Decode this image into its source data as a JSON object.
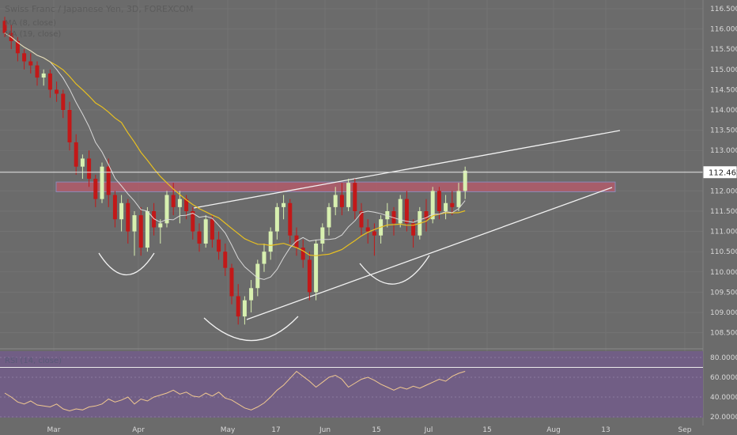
{
  "header": {
    "title": "Swiss Franc / Japanese Yen, 3D, FOREXCOM",
    "ma1": "MA (8, close)",
    "ma2": "MA (19, close)",
    "rsi": "RSI (14, close)"
  },
  "colors": {
    "background": "#6b6b6b",
    "up_candle": "#d8f0b0",
    "down_candle": "#c21818",
    "ma_fast": "#d8d8d8",
    "ma_slow": "#e8c020",
    "trendline": "#f2f2f2",
    "resistance_zone": "#b25a6a",
    "rsi_panel": "#715e85",
    "rsi_line": "#f0c890"
  },
  "chart_data": [
    {
      "type": "candlestick",
      "title": "Swiss Franc / Japanese Yen, 3D, FOREXCOM",
      "y_ticks": [
        "116.500",
        "116.000",
        "115.500",
        "115.000",
        "114.500",
        "114.000",
        "113.500",
        "113.000",
        "112.500",
        "112.000",
        "111.500",
        "111.000",
        "110.500",
        "110.000",
        "109.500",
        "109.000",
        "108.500"
      ],
      "ylim": [
        108.2,
        116.8
      ],
      "x_ticks": [
        "Mar",
        "Apr",
        "May",
        "17",
        "Jun",
        "15",
        "Jul",
        "15",
        "Aug",
        "13",
        "Sep"
      ],
      "last_price": "112.462",
      "resistance_zone": [
        111.98,
        112.22
      ],
      "series": [
        {
          "name": "MA (8, close)"
        },
        {
          "name": "MA (19, close)"
        }
      ],
      "candles": [
        [
          116.2,
          116.3,
          115.8,
          115.9
        ],
        [
          115.9,
          116.1,
          115.5,
          115.7
        ],
        [
          115.7,
          115.8,
          115.2,
          115.4
        ],
        [
          115.4,
          115.5,
          115.0,
          115.2
        ],
        [
          115.2,
          115.4,
          114.9,
          115.1
        ],
        [
          115.1,
          115.2,
          114.6,
          114.8
        ],
        [
          114.8,
          115.0,
          114.6,
          114.9
        ],
        [
          114.9,
          115.0,
          114.3,
          114.5
        ],
        [
          114.5,
          114.7,
          114.2,
          114.4
        ],
        [
          114.4,
          114.5,
          113.8,
          114.0
        ],
        [
          114.0,
          114.2,
          113.0,
          113.2
        ],
        [
          113.2,
          113.4,
          112.4,
          112.6
        ],
        [
          112.6,
          112.9,
          112.3,
          112.8
        ],
        [
          112.8,
          113.0,
          112.1,
          112.3
        ],
        [
          112.3,
          112.4,
          111.6,
          111.8
        ],
        [
          111.8,
          112.7,
          111.7,
          112.6
        ],
        [
          112.6,
          112.8,
          111.6,
          111.9
        ],
        [
          111.9,
          112.0,
          111.1,
          111.3
        ],
        [
          111.3,
          111.9,
          111.0,
          111.7
        ],
        [
          111.7,
          111.8,
          110.7,
          111.0
        ],
        [
          111.0,
          111.5,
          110.4,
          111.4
        ],
        [
          111.4,
          111.6,
          110.4,
          110.6
        ],
        [
          110.6,
          111.6,
          110.5,
          111.5
        ],
        [
          111.5,
          111.7,
          110.9,
          111.1
        ],
        [
          111.1,
          111.3,
          110.7,
          111.2
        ],
        [
          111.2,
          112.0,
          111.1,
          111.9
        ],
        [
          111.9,
          112.2,
          111.4,
          111.6
        ],
        [
          111.6,
          112.0,
          111.2,
          111.8
        ],
        [
          111.8,
          111.9,
          111.3,
          111.5
        ],
        [
          111.5,
          111.6,
          110.8,
          111.0
        ],
        [
          111.0,
          111.2,
          110.5,
          110.7
        ],
        [
          110.7,
          111.4,
          110.6,
          111.3
        ],
        [
          111.3,
          111.4,
          110.6,
          110.8
        ],
        [
          110.8,
          111.0,
          110.3,
          110.5
        ],
        [
          110.5,
          110.7,
          109.9,
          110.1
        ],
        [
          110.1,
          110.2,
          109.2,
          109.4
        ],
        [
          109.4,
          109.7,
          108.7,
          108.9
        ],
        [
          108.9,
          109.4,
          108.7,
          109.3
        ],
        [
          109.3,
          109.8,
          109.0,
          109.6
        ],
        [
          109.6,
          110.3,
          109.4,
          110.2
        ],
        [
          110.2,
          110.7,
          110.0,
          110.5
        ],
        [
          110.5,
          111.1,
          110.3,
          111.0
        ],
        [
          111.0,
          111.7,
          110.8,
          111.6
        ],
        [
          111.6,
          111.9,
          111.3,
          111.7
        ],
        [
          111.7,
          111.8,
          110.7,
          110.9
        ],
        [
          110.9,
          111.1,
          110.4,
          110.6
        ],
        [
          110.6,
          110.8,
          110.1,
          110.3
        ],
        [
          110.3,
          110.5,
          109.3,
          109.5
        ],
        [
          109.5,
          110.8,
          109.3,
          110.7
        ],
        [
          110.7,
          111.2,
          110.5,
          111.1
        ],
        [
          111.1,
          111.7,
          110.9,
          111.6
        ],
        [
          111.6,
          112.1,
          111.4,
          111.9
        ],
        [
          111.9,
          112.2,
          111.4,
          111.6
        ],
        [
          111.6,
          112.3,
          111.5,
          112.2
        ],
        [
          112.2,
          112.3,
          111.3,
          111.5
        ],
        [
          111.5,
          111.7,
          110.9,
          111.1
        ],
        [
          111.1,
          111.3,
          110.7,
          111.0
        ],
        [
          111.0,
          111.2,
          110.4,
          110.9
        ],
        [
          110.9,
          111.4,
          110.7,
          111.3
        ],
        [
          111.3,
          111.7,
          111.1,
          111.5
        ],
        [
          111.5,
          111.6,
          110.9,
          111.2
        ],
        [
          111.2,
          111.9,
          111.1,
          111.8
        ],
        [
          111.8,
          112.0,
          111.0,
          111.2
        ],
        [
          111.2,
          111.3,
          110.6,
          110.9
        ],
        [
          110.9,
          111.6,
          110.8,
          111.5
        ],
        [
          111.5,
          111.8,
          111.0,
          111.3
        ],
        [
          111.3,
          112.1,
          111.2,
          112.0
        ],
        [
          112.0,
          112.1,
          111.3,
          111.5
        ],
        [
          111.5,
          111.9,
          111.3,
          111.7
        ],
        [
          111.7,
          112.0,
          111.4,
          111.6
        ],
        [
          111.6,
          112.2,
          111.5,
          112.0
        ],
        [
          112.0,
          112.6,
          111.8,
          112.5
        ]
      ]
    },
    {
      "type": "line",
      "title": "RSI (14, close)",
      "y_ticks": [
        "80.0000",
        "60.0000",
        "40.0000",
        "20.0000"
      ],
      "ylim": [
        18,
        82
      ],
      "levels": [
        70,
        30
      ],
      "series": [
        {
          "name": "RSI (14, close)",
          "values": [
            44,
            40,
            35,
            33,
            36,
            32,
            31,
            30,
            33,
            28,
            26,
            28,
            27,
            30,
            31,
            33,
            38,
            35,
            37,
            40,
            33,
            38,
            36,
            40,
            42,
            44,
            47,
            43,
            45,
            41,
            40,
            44,
            41,
            45,
            39,
            37,
            33,
            29,
            27,
            30,
            34,
            40,
            47,
            52,
            59,
            66,
            61,
            56,
            50,
            55,
            60,
            62,
            58,
            50,
            54,
            58,
            60,
            57,
            53,
            50,
            47,
            50,
            48,
            51,
            49,
            52,
            55,
            58,
            56,
            61,
            64,
            66
          ]
        }
      ]
    }
  ]
}
